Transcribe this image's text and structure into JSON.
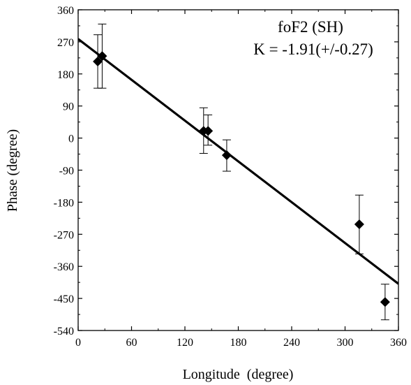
{
  "chart_data": {
    "type": "scatter",
    "xlabel": "Longitude  (degree)",
    "ylabel": "Phase (degree)",
    "xlim": [
      0,
      360
    ],
    "ylim": [
      -540,
      360
    ],
    "xticks": [
      0,
      60,
      120,
      180,
      240,
      300,
      360
    ],
    "yticks": [
      360,
      270,
      180,
      90,
      0,
      -90,
      -180,
      -270,
      -360,
      -450,
      -540
    ],
    "xtick_labels": [
      "0",
      "60",
      "120",
      "180",
      "240",
      "300",
      "360"
    ],
    "ytick_labels": [
      "360",
      "270",
      "180",
      "90",
      "0",
      "-90",
      "-180",
      "-270",
      "-360",
      "-450",
      "-540"
    ],
    "grid": false,
    "annotations": [
      "foF2 (SH)",
      "K = -1.91(+/-0.27)"
    ],
    "points": [
      {
        "x": 22,
        "y": 215,
        "err_low": 140,
        "err_high": 290
      },
      {
        "x": 27,
        "y": 230,
        "err_low": 140,
        "err_high": 320
      },
      {
        "x": 141,
        "y": 20,
        "err_low": -43,
        "err_high": 85
      },
      {
        "x": 146,
        "y": 20,
        "err_low": -20,
        "err_high": 65
      },
      {
        "x": 167,
        "y": -48,
        "err_low": -93,
        "err_high": -5
      },
      {
        "x": 316,
        "y": -242,
        "err_low": -325,
        "err_high": -160
      },
      {
        "x": 345,
        "y": -460,
        "err_low": -510,
        "err_high": -410
      }
    ],
    "fit_line": {
      "x": [
        0,
        360
      ],
      "y": [
        278,
        -409
      ]
    }
  }
}
